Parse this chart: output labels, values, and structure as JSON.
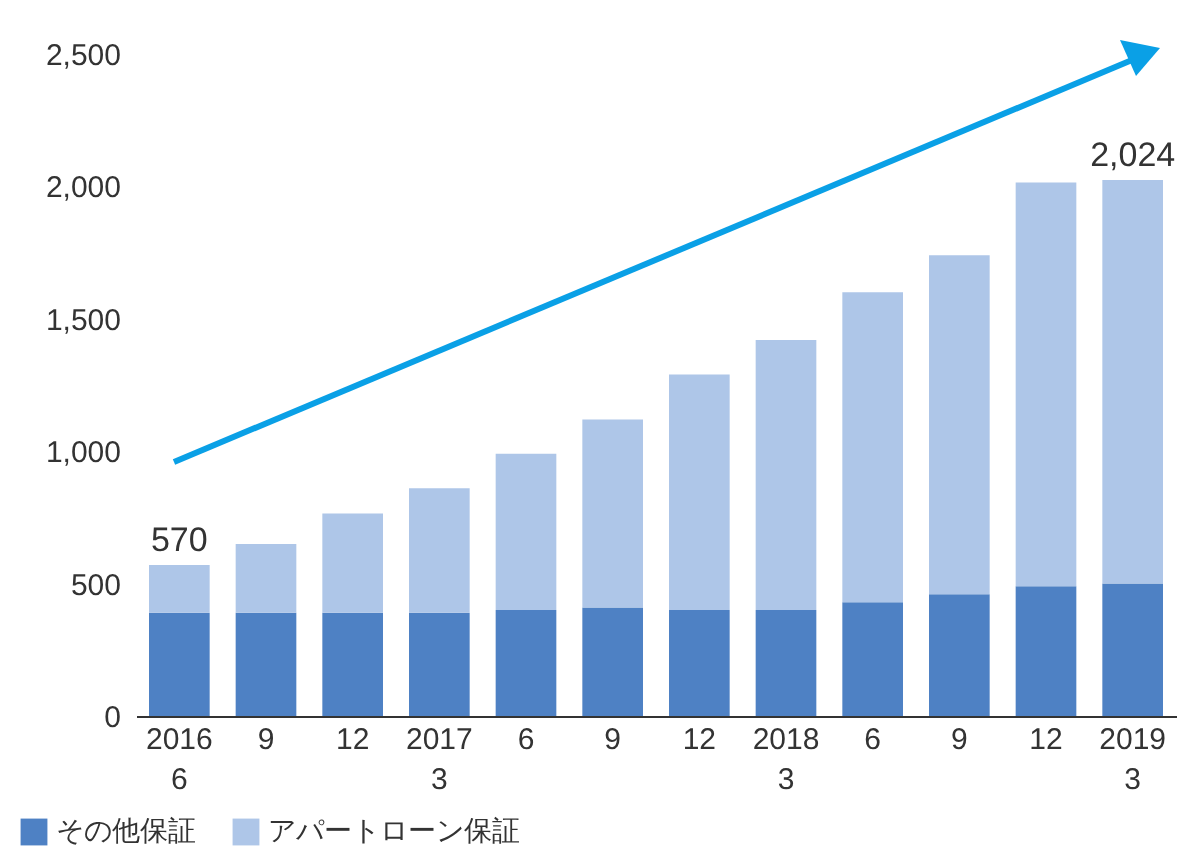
{
  "chart_data": {
    "type": "bar",
    "stacked": true,
    "categories": [
      "2016\n6",
      "9",
      "12",
      "2017\n3",
      "6",
      "9",
      "12",
      "2018\n3",
      "6",
      "9",
      "12",
      "2019\n3"
    ],
    "series": [
      {
        "name": "その他保証",
        "color": "#4e81c4",
        "values": [
          390,
          390,
          390,
          390,
          400,
          410,
          400,
          400,
          430,
          460,
          490,
          500
        ]
      },
      {
        "name": "アパートローン保証",
        "color": "#aec6e8",
        "values": [
          180,
          260,
          375,
          470,
          590,
          710,
          890,
          1020,
          1170,
          1280,
          1525,
          1524
        ]
      }
    ],
    "totals": [
      "570",
      null,
      null,
      null,
      null,
      null,
      null,
      null,
      null,
      null,
      null,
      "2,024"
    ],
    "ylim": [
      0,
      2500
    ],
    "yticks": [
      0,
      {
        "value": 500,
        "label": "500"
      },
      {
        "value": 1000,
        "label": "1,000"
      },
      {
        "value": 1500,
        "label": "1,500"
      },
      {
        "value": 2000,
        "label": "2,000"
      },
      {
        "value": 2500,
        "label": "2,500"
      }
    ],
    "grid": false,
    "legend": "bottom left"
  }
}
